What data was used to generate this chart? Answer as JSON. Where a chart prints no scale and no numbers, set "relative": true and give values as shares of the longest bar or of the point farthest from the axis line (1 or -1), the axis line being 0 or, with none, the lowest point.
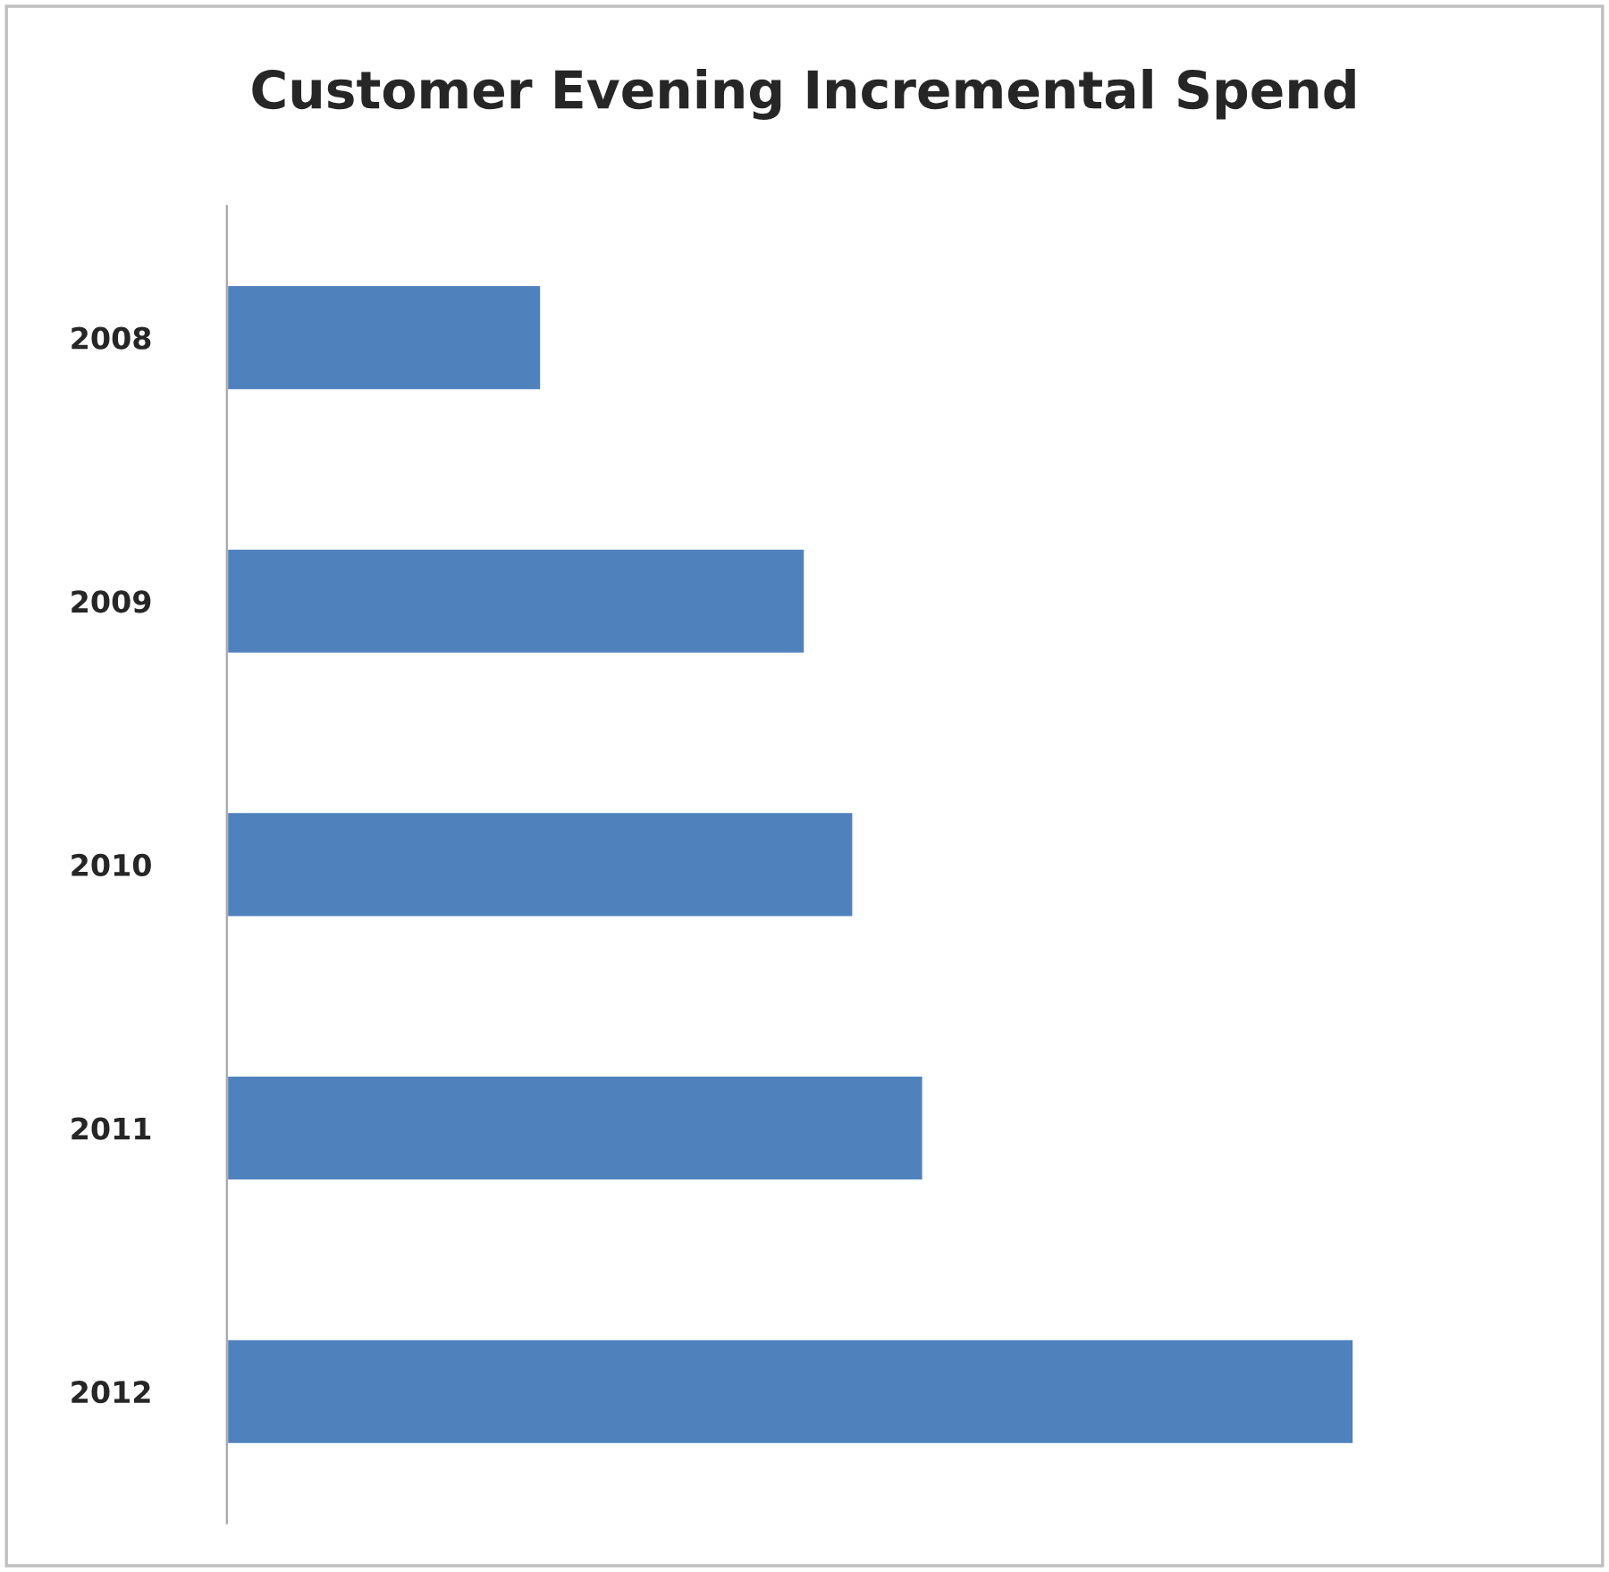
{
  "chart_data": {
    "type": "bar",
    "title": "Customer Evening Incremental Spend",
    "orientation": "horizontal",
    "relative": true,
    "categories": [
      "2008",
      "2009",
      "2010",
      "2011",
      "2012"
    ],
    "values": [
      0.279,
      0.513,
      0.556,
      0.618,
      1.0
    ],
    "color": "#4f81bd",
    "grid": false,
    "legend": false
  }
}
